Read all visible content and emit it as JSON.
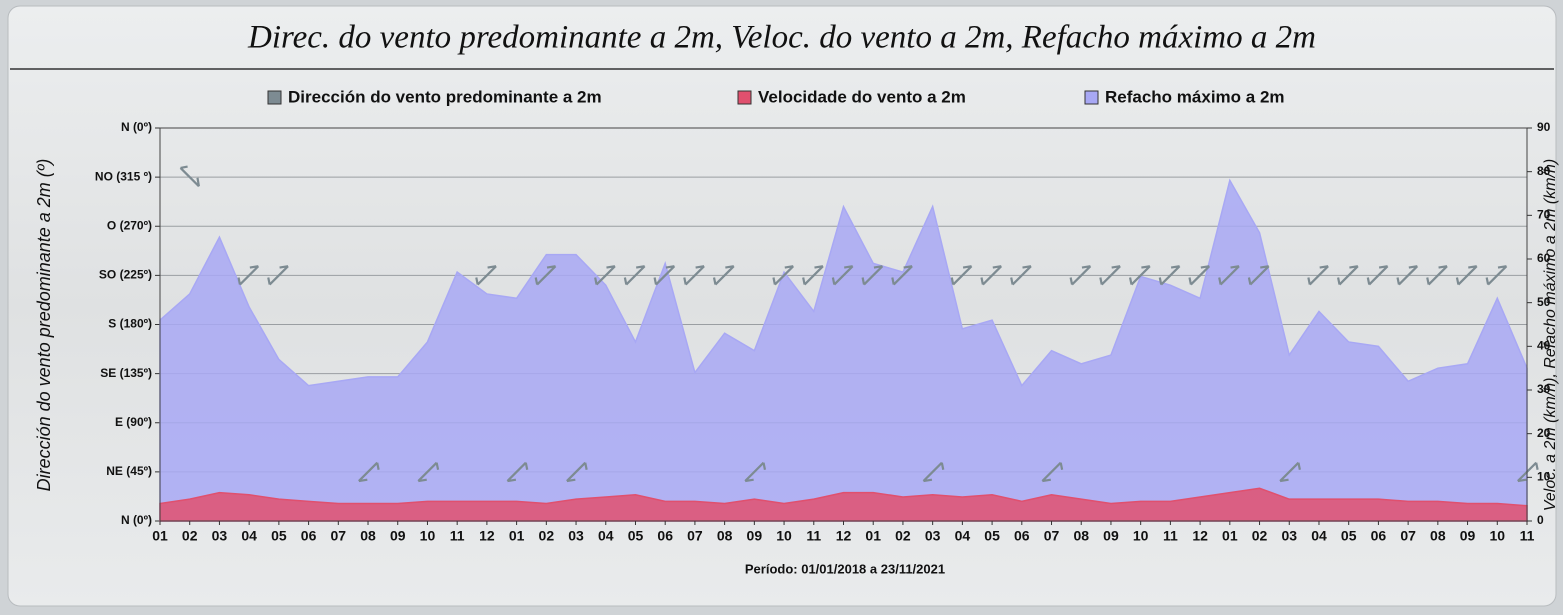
{
  "chart_data": {
    "type": "area",
    "title": "Direc. do vento predominante a 2m, Veloc. do vento a 2m, Refacho máximo a 2m",
    "xlabel": "Período: 01/01/2018 a 23/11/2021",
    "ylabel": "Dirección do vento predominante a 2m (º)",
    "y2label": "Veloc. a 2m (km/h), Refacho máximo a 2m (km/h)",
    "categories": [
      "01",
      "02",
      "03",
      "04",
      "05",
      "06",
      "07",
      "08",
      "09",
      "10",
      "11",
      "12",
      "01",
      "02",
      "03",
      "04",
      "05",
      "06",
      "07",
      "08",
      "09",
      "10",
      "11",
      "12",
      "01",
      "02",
      "03",
      "04",
      "05",
      "06",
      "07",
      "08",
      "09",
      "10",
      "11",
      "12",
      "01",
      "02",
      "03",
      "04",
      "05",
      "06",
      "07",
      "08",
      "09",
      "10",
      "11"
    ],
    "ylim": [
      0,
      360
    ],
    "yticks": [
      {
        "value": 0,
        "label": "N (0º)"
      },
      {
        "value": 45,
        "label": "NE (45º)"
      },
      {
        "value": 90,
        "label": "E (90º)"
      },
      {
        "value": 135,
        "label": "SE (135º)"
      },
      {
        "value": 180,
        "label": "S (180º)"
      },
      {
        "value": 225,
        "label": "SO (225º)"
      },
      {
        "value": 270,
        "label": "O (270º)"
      },
      {
        "value": 315,
        "label": "NO (315 º)"
      },
      {
        "value": 360,
        "label": "N (0º)"
      }
    ],
    "y2lim": [
      0,
      90
    ],
    "y2ticks": [
      0,
      10,
      20,
      30,
      40,
      50,
      60,
      70,
      80,
      90
    ],
    "grid": true,
    "series": [
      {
        "name": "Dirección do vento predominante a 2m",
        "color": "#7d8b92",
        "axis": "y",
        "values": [
          null,
          315,
          null,
          225,
          225,
          null,
          null,
          45,
          null,
          45,
          null,
          225,
          45,
          225,
          45,
          225,
          225,
          225,
          225,
          225,
          45,
          225,
          225,
          225,
          225,
          225,
          45,
          225,
          225,
          225,
          45,
          225,
          225,
          225,
          225,
          225,
          225,
          225,
          45,
          225,
          225,
          225,
          225,
          225,
          225,
          225,
          45
        ]
      },
      {
        "name": "Velocidade do vento a 2m",
        "color": "#e0506e",
        "axis": "y2",
        "values": [
          4,
          5,
          6.5,
          6,
          5,
          4.5,
          4,
          4,
          4,
          4.5,
          4.5,
          4.5,
          4.5,
          4,
          5,
          5.5,
          6,
          4.5,
          4.5,
          4,
          5,
          4,
          5,
          6.5,
          6.5,
          5.5,
          6,
          5.5,
          6,
          4.5,
          6,
          5,
          4,
          4.5,
          4.5,
          5.5,
          6.5,
          7.5,
          5,
          5,
          5,
          5,
          4.5,
          4.5,
          4,
          4,
          3.5
        ]
      },
      {
        "name": "Refacho máximo a 2m",
        "color": "#a8a8f4",
        "axis": "y2",
        "values": [
          46,
          52,
          65,
          49,
          37,
          31,
          32,
          33,
          33,
          41,
          57,
          52,
          51,
          61,
          61,
          54,
          41,
          59,
          34,
          43,
          39,
          57,
          48,
          72,
          59,
          57,
          72,
          44,
          46,
          31,
          39,
          36,
          38,
          56,
          54,
          51,
          78,
          66,
          38,
          48,
          41,
          40,
          32,
          35,
          36,
          51,
          35
        ]
      }
    ]
  }
}
